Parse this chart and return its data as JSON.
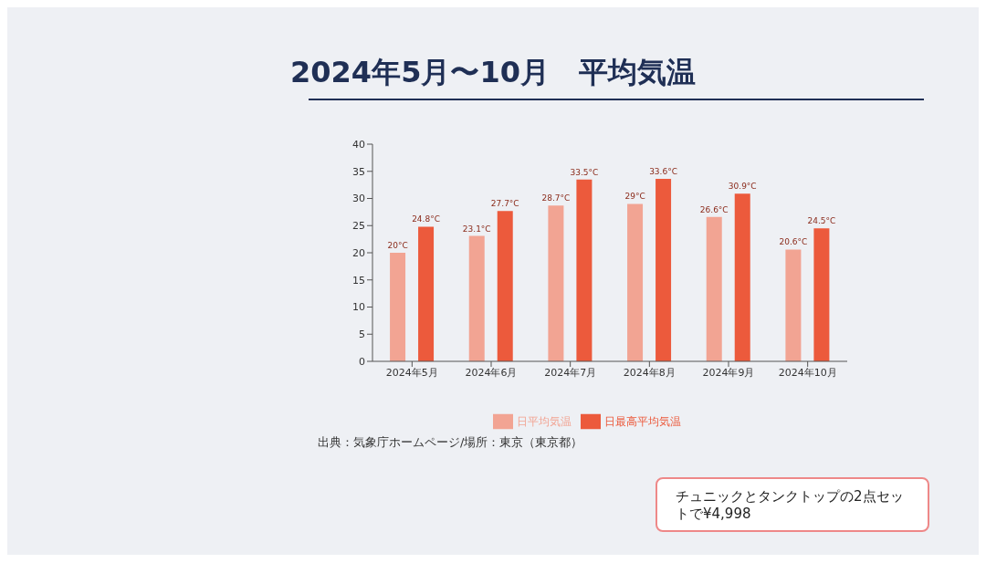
{
  "chart_data": {
    "type": "bar",
    "title": "2024年5月〜10月　平均気温",
    "categories": [
      "2024年5月",
      "2024年6月",
      "2024年7月",
      "2024年8月",
      "2024年9月",
      "2024年10月"
    ],
    "series": [
      {
        "name": "日平均気温",
        "color": "#f2a493",
        "values": [
          20,
          23.1,
          28.7,
          29,
          26.6,
          20.6
        ],
        "value_labels": [
          "20°C",
          "23.1°C",
          "28.7°C",
          "29°C",
          "26.6°C",
          "20.6°C"
        ]
      },
      {
        "name": "日最高平均気温",
        "color": "#ec5a3c",
        "values": [
          24.8,
          27.7,
          33.5,
          33.6,
          30.9,
          24.5
        ],
        "value_labels": [
          "24.8°C",
          "27.7°C",
          "33.5°C",
          "33.6°C",
          "30.9°C",
          "24.5°C"
        ]
      }
    ],
    "ylim": [
      0,
      40
    ],
    "yticks": [
      0,
      5,
      10,
      15,
      20,
      25,
      30,
      35,
      40
    ],
    "grid": false,
    "legend": "bottom",
    "annotations": [
      "出典：気象庁ホームページ/場所：東京（東京都）",
      "チュニックとタンクトップの2点セットで¥4,998"
    ]
  }
}
